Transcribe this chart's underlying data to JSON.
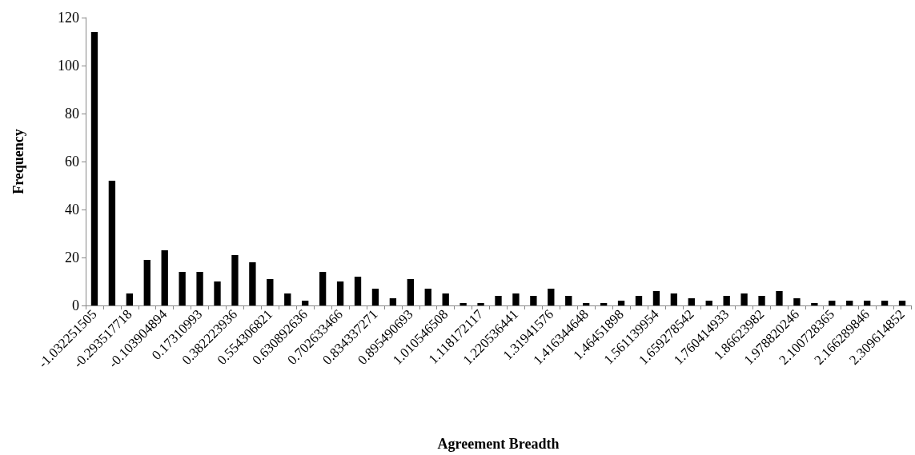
{
  "chart_data": {
    "type": "bar",
    "xlabel": "Agreement Breadth",
    "ylabel": "Frequency",
    "categories": [
      "-1.032251505",
      null,
      "-0.293517718",
      null,
      "-0.103904894",
      null,
      "0.17310993",
      null,
      "0.382223936",
      null,
      "0.554306821",
      null,
      "0.630892636",
      null,
      "0.702633466",
      null,
      "0.834337271",
      null,
      "0.895490693",
      null,
      "1.010546508",
      null,
      "1.118172117",
      null,
      "1.220536441",
      null,
      "1.31941576",
      null,
      "1.416344648",
      null,
      "1.46451898",
      null,
      "1.561139954",
      null,
      "1.659278542",
      null,
      "1.760414933",
      null,
      "1.86623982",
      null,
      "1.978820246",
      null,
      "2.100728365",
      null,
      "2.166289846",
      null,
      "2.309614852"
    ],
    "values": [
      114,
      52,
      5,
      19,
      23,
      14,
      14,
      10,
      21,
      18,
      11,
      5,
      2,
      14,
      10,
      12,
      7,
      3,
      11,
      7,
      5,
      1,
      1,
      4,
      5,
      4,
      7,
      4,
      1,
      1,
      2,
      4,
      6,
      5,
      3,
      2,
      4,
      5,
      4,
      6,
      3,
      1,
      2,
      2,
      2,
      2,
      2
    ],
    "color": "#000000",
    "ylim": [
      0,
      120
    ],
    "yticks": [
      0,
      20,
      40,
      60,
      80,
      100,
      120
    ],
    "grid": false
  }
}
